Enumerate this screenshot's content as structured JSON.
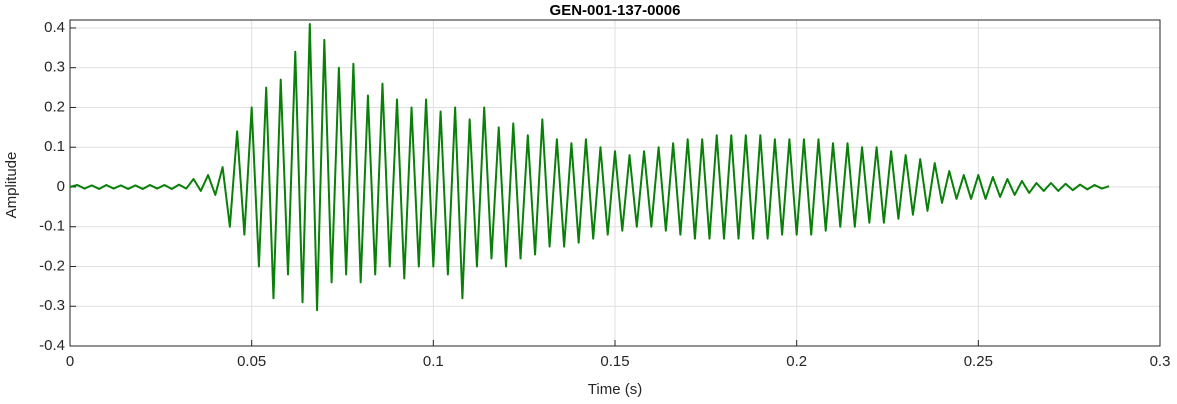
{
  "chart_data": {
    "type": "line",
    "title": "GEN-001-137-0006",
    "xlabel": "Time (s)",
    "ylabel": "Amplitude",
    "xlim": [
      0,
      0.3
    ],
    "ylim": [
      -0.4,
      0.42
    ],
    "xticks": [
      0,
      0.05,
      0.1,
      0.15,
      0.2,
      0.25,
      0.3
    ],
    "yticks": [
      -0.4,
      -0.3,
      -0.2,
      -0.1,
      0,
      0.1,
      0.2,
      0.3,
      0.4
    ],
    "grid": true,
    "x": [
      0,
      0.002,
      0.004,
      0.006,
      0.008,
      0.01,
      0.012,
      0.014,
      0.016,
      0.018,
      0.02,
      0.022,
      0.024,
      0.026,
      0.028,
      0.03,
      0.032,
      0.034,
      0.036,
      0.038,
      0.04,
      0.042,
      0.044,
      0.046,
      0.048,
      0.05,
      0.052,
      0.054,
      0.056,
      0.058,
      0.06,
      0.062,
      0.064,
      0.066,
      0.068,
      0.07,
      0.072,
      0.074,
      0.076,
      0.078,
      0.08,
      0.082,
      0.084,
      0.086,
      0.088,
      0.09,
      0.092,
      0.094,
      0.096,
      0.098,
      0.1,
      0.102,
      0.104,
      0.106,
      0.108,
      0.11,
      0.112,
      0.114,
      0.116,
      0.118,
      0.12,
      0.122,
      0.124,
      0.126,
      0.128,
      0.13,
      0.132,
      0.134,
      0.136,
      0.138,
      0.14,
      0.142,
      0.144,
      0.146,
      0.148,
      0.15,
      0.152,
      0.154,
      0.156,
      0.158,
      0.16,
      0.162,
      0.164,
      0.166,
      0.168,
      0.17,
      0.172,
      0.174,
      0.176,
      0.178,
      0.18,
      0.182,
      0.184,
      0.186,
      0.188,
      0.19,
      0.192,
      0.194,
      0.196,
      0.198,
      0.2,
      0.202,
      0.204,
      0.206,
      0.208,
      0.21,
      0.212,
      0.214,
      0.216,
      0.218,
      0.22,
      0.222,
      0.224,
      0.226,
      0.228,
      0.23,
      0.232,
      0.234,
      0.236,
      0.238,
      0.24,
      0.242,
      0.244,
      0.246,
      0.248,
      0.25,
      0.252,
      0.254,
      0.256,
      0.258,
      0.26,
      0.262,
      0.264,
      0.266,
      0.268,
      0.27,
      0.272,
      0.274,
      0.276,
      0.278,
      0.28,
      0.282,
      0.284,
      0.286
    ],
    "series": [
      {
        "color": "#0a800a",
        "values": [
          0,
          0.005,
          -0.004,
          0.004,
          -0.005,
          0.005,
          -0.004,
          0.004,
          -0.005,
          0.004,
          -0.005,
          0.005,
          -0.004,
          0.005,
          -0.005,
          0.006,
          -0.004,
          0.02,
          -0.01,
          0.03,
          -0.02,
          0.05,
          -0.1,
          0.14,
          -0.12,
          0.2,
          -0.2,
          0.25,
          -0.28,
          0.27,
          -0.22,
          0.34,
          -0.29,
          0.41,
          -0.31,
          0.37,
          -0.24,
          0.3,
          -0.22,
          0.31,
          -0.24,
          0.23,
          -0.22,
          0.26,
          -0.2,
          0.22,
          -0.23,
          0.2,
          -0.2,
          0.22,
          -0.2,
          0.19,
          -0.22,
          0.2,
          -0.28,
          0.17,
          -0.2,
          0.2,
          -0.18,
          0.15,
          -0.2,
          0.16,
          -0.18,
          0.13,
          -0.17,
          0.17,
          -0.15,
          0.12,
          -0.15,
          0.11,
          -0.14,
          0.12,
          -0.13,
          0.1,
          -0.12,
          0.09,
          -0.11,
          0.08,
          -0.1,
          0.09,
          -0.1,
          0.1,
          -0.11,
          0.11,
          -0.12,
          0.12,
          -0.13,
          0.12,
          -0.13,
          0.13,
          -0.13,
          0.13,
          -0.13,
          0.13,
          -0.13,
          0.13,
          -0.13,
          0.12,
          -0.12,
          0.12,
          -0.12,
          0.12,
          -0.12,
          0.12,
          -0.11,
          0.11,
          -0.1,
          0.11,
          -0.1,
          0.1,
          -0.09,
          0.1,
          -0.09,
          0.09,
          -0.08,
          0.08,
          -0.07,
          0.07,
          -0.06,
          0.06,
          -0.04,
          0.04,
          -0.03,
          0.03,
          -0.03,
          0.03,
          -0.03,
          0.025,
          -0.025,
          0.02,
          -0.02,
          0.015,
          -0.015,
          0.01,
          -0.01,
          0.01,
          -0.01,
          0.008,
          -0.008,
          0.006,
          -0.006,
          0.005,
          -0.004,
          0.002
        ]
      }
    ]
  }
}
